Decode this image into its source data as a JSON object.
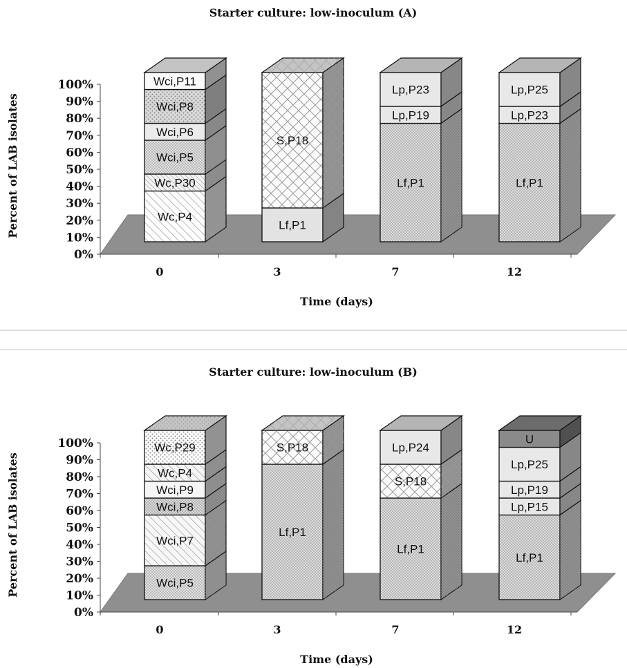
{
  "chart_data": [
    {
      "type": "bar",
      "stacked": true,
      "three_d": true,
      "title": "Starter culture: low-inoculum (A)",
      "xlabel": "Time (days)",
      "ylabel": "Percent of LAB isolates",
      "ylim": [
        0,
        100
      ],
      "yticks": [
        "0%",
        "10%",
        "20%",
        "30%",
        "40%",
        "50%",
        "60%",
        "70%",
        "80%",
        "90%",
        "100%"
      ],
      "categories": [
        "0",
        "3",
        "7",
        "12"
      ],
      "stacks": [
        {
          "category": "0",
          "segments": [
            {
              "label": "Wc,P4",
              "value": 30,
              "fill": "#fdfdfd",
              "pattern": "diag-hatch"
            },
            {
              "label": "Wc,P30",
              "value": 10,
              "fill": "#f2f2f2",
              "pattern": "diag-hatch-fine"
            },
            {
              "label": "Wci,P5",
              "value": 20,
              "fill": "#e9e9e9",
              "pattern": "crosshatch"
            },
            {
              "label": "Wci,P6",
              "value": 10,
              "fill": "#ebebeb",
              "pattern": "none"
            },
            {
              "label": "Wci,P8",
              "value": 20,
              "fill": "#d9d9d9",
              "pattern": "dots"
            },
            {
              "label": "Wci,P11",
              "value": 10,
              "fill": "#fafafa",
              "pattern": "none"
            }
          ]
        },
        {
          "category": "3",
          "segments": [
            {
              "label": "Lf,P1",
              "value": 20,
              "fill": "#e3e3e3",
              "pattern": "none"
            },
            {
              "label": "S,P18",
              "value": 80,
              "fill": "#fbfbfb",
              "pattern": "diamond"
            }
          ]
        },
        {
          "category": "7",
          "segments": [
            {
              "label": "Lf,P1",
              "value": 70,
              "fill": "#e3e3e3",
              "pattern": "crosshatch"
            },
            {
              "label": "Lp,P19",
              "value": 10,
              "fill": "#e8e8e8",
              "pattern": "none"
            },
            {
              "label": "Lp,P23",
              "value": 20,
              "fill": "#e8e8e8",
              "pattern": "none"
            }
          ]
        },
        {
          "category": "12",
          "segments": [
            {
              "label": "Lf,P1",
              "value": 70,
              "fill": "#e3e3e3",
              "pattern": "crosshatch"
            },
            {
              "label": "Lp,P23",
              "value": 10,
              "fill": "#e8e8e8",
              "pattern": "none"
            },
            {
              "label": "Lp,P25",
              "value": 20,
              "fill": "#e8e8e8",
              "pattern": "none"
            }
          ]
        }
      ]
    },
    {
      "type": "bar",
      "stacked": true,
      "three_d": true,
      "title": "Starter culture: low-inoculum (B)",
      "xlabel": "Time (days)",
      "ylabel": "Percent of LAB isolates",
      "ylim": [
        0,
        100
      ],
      "yticks": [
        "0%",
        "10%",
        "20%",
        "30%",
        "40%",
        "50%",
        "60%",
        "70%",
        "80%",
        "90%",
        "100%"
      ],
      "categories": [
        "0",
        "3",
        "7",
        "12"
      ],
      "stacks": [
        {
          "category": "0",
          "segments": [
            {
              "label": "Wci,P5",
              "value": 20,
              "fill": "#ebebeb",
              "pattern": "crosshatch"
            },
            {
              "label": "Wci,P7",
              "value": 30,
              "fill": "#f7f7f7",
              "pattern": "diag-hatch"
            },
            {
              "label": "Wci,P8",
              "value": 10,
              "fill": "#dedede",
              "pattern": "crosshatch"
            },
            {
              "label": "Wci,P9",
              "value": 10,
              "fill": "#f5f5f5",
              "pattern": "none"
            },
            {
              "label": "Wc,P4",
              "value": 10,
              "fill": "#f5f5f5",
              "pattern": "diag-hatch"
            },
            {
              "label": "Wc,P29",
              "value": 20,
              "fill": "#fdfdfd",
              "pattern": "dots"
            }
          ]
        },
        {
          "category": "3",
          "segments": [
            {
              "label": "Lf,P1",
              "value": 80,
              "fill": "#e3e3e3",
              "pattern": "crosshatch"
            },
            {
              "label": "S,P18",
              "value": 20,
              "fill": "#fbfbfb",
              "pattern": "diamond"
            }
          ]
        },
        {
          "category": "7",
          "segments": [
            {
              "label": "Lf,P1",
              "value": 60,
              "fill": "#e3e3e3",
              "pattern": "crosshatch"
            },
            {
              "label": "S,P18",
              "value": 20,
              "fill": "#fbfbfb",
              "pattern": "diamond"
            },
            {
              "label": "Lp,P24",
              "value": 20,
              "fill": "#e8e8e8",
              "pattern": "none"
            }
          ]
        },
        {
          "category": "12",
          "segments": [
            {
              "label": "Lf,P1",
              "value": 50,
              "fill": "#e3e3e3",
              "pattern": "crosshatch"
            },
            {
              "label": "Lp,P15",
              "value": 10,
              "fill": "#e8e8e8",
              "pattern": "none"
            },
            {
              "label": "Lp,P19",
              "value": 10,
              "fill": "#e8e8e8",
              "pattern": "none"
            },
            {
              "label": "Lp,P25",
              "value": 20,
              "fill": "#e8e8e8",
              "pattern": "none"
            },
            {
              "label": "U",
              "value": 10,
              "fill": "#8a8a8a",
              "pattern": "none"
            }
          ]
        }
      ]
    }
  ]
}
